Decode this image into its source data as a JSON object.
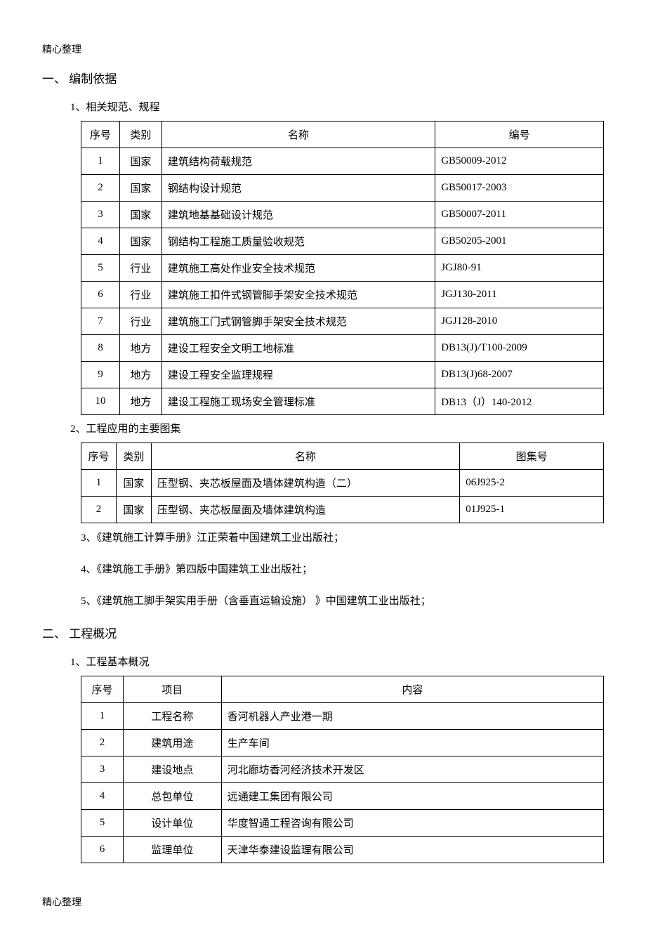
{
  "header": "精心整理",
  "footer": "精心整理",
  "section1": {
    "heading": "一、 编制依据",
    "sub1": "1、相关规范、规程",
    "table1": {
      "columns": [
        "序号",
        "类别",
        "名称",
        "编号"
      ],
      "rows": [
        [
          "1",
          "国家",
          "建筑结构荷载规范",
          "GB50009-2012"
        ],
        [
          "2",
          "国家",
          "钢结构设计规范",
          "GB50017-2003"
        ],
        [
          "3",
          "国家",
          "建筑地基基础设计规范",
          "GB50007-2011"
        ],
        [
          "4",
          "国家",
          "钢结构工程施工质量验收规范",
          "GB50205-2001"
        ],
        [
          "5",
          "行业",
          "建筑施工高处作业安全技术规范",
          "JGJ80-91"
        ],
        [
          "6",
          "行业",
          "建筑施工扣件式钢管脚手架安全技术规范",
          "JGJ130-2011"
        ],
        [
          "7",
          "行业",
          "建筑施工门式钢管脚手架安全技术规范",
          "JGJ128-2010"
        ],
        [
          "8",
          "地方",
          "建设工程安全文明工地标准",
          "DB13(J)/T100-2009"
        ],
        [
          "9",
          "地方",
          "建设工程安全监理规程",
          "DB13(J)68-2007"
        ],
        [
          "10",
          "地方",
          "建设工程施工现场安全管理标准",
          "DB13（J）140-2012"
        ]
      ]
    },
    "sub2": "2、工程应用的主要图集",
    "table2": {
      "columns": [
        "序号",
        "类别",
        "名称",
        "图集号"
      ],
      "rows": [
        [
          "1",
          "国家",
          "压型钢、夹芯板屋面及墙体建筑构造（二）",
          "06J925-2"
        ],
        [
          "2",
          "国家",
          "压型钢、夹芯板屋面及墙体建筑构造",
          "01J925-1"
        ]
      ]
    },
    "item3": "3、《建筑施工计算手册》江正荣着中国建筑工业出版社；",
    "item4": "4、《建筑施工手册》第四版中国建筑工业出版社；",
    "item5": "5、《建筑施工脚手架实用手册（含垂直运输设施） 》中国建筑工业出版社；"
  },
  "section2": {
    "heading": "二、 工程概况",
    "sub1": "1、工程基本概况",
    "table3": {
      "columns": [
        "序号",
        "项目",
        "内容"
      ],
      "rows": [
        [
          "1",
          "工程名称",
          "香河机器人产业港一期"
        ],
        [
          "2",
          "建筑用途",
          "生产车间"
        ],
        [
          "3",
          "建设地点",
          "河北廊坊香河经济技术开发区"
        ],
        [
          "4",
          "总包单位",
          "远通建工集团有限公司"
        ],
        [
          "5",
          "设计单位",
          "华度智通工程咨询有限公司"
        ],
        [
          "6",
          "监理单位",
          "天津华泰建设监理有限公司"
        ]
      ]
    }
  }
}
